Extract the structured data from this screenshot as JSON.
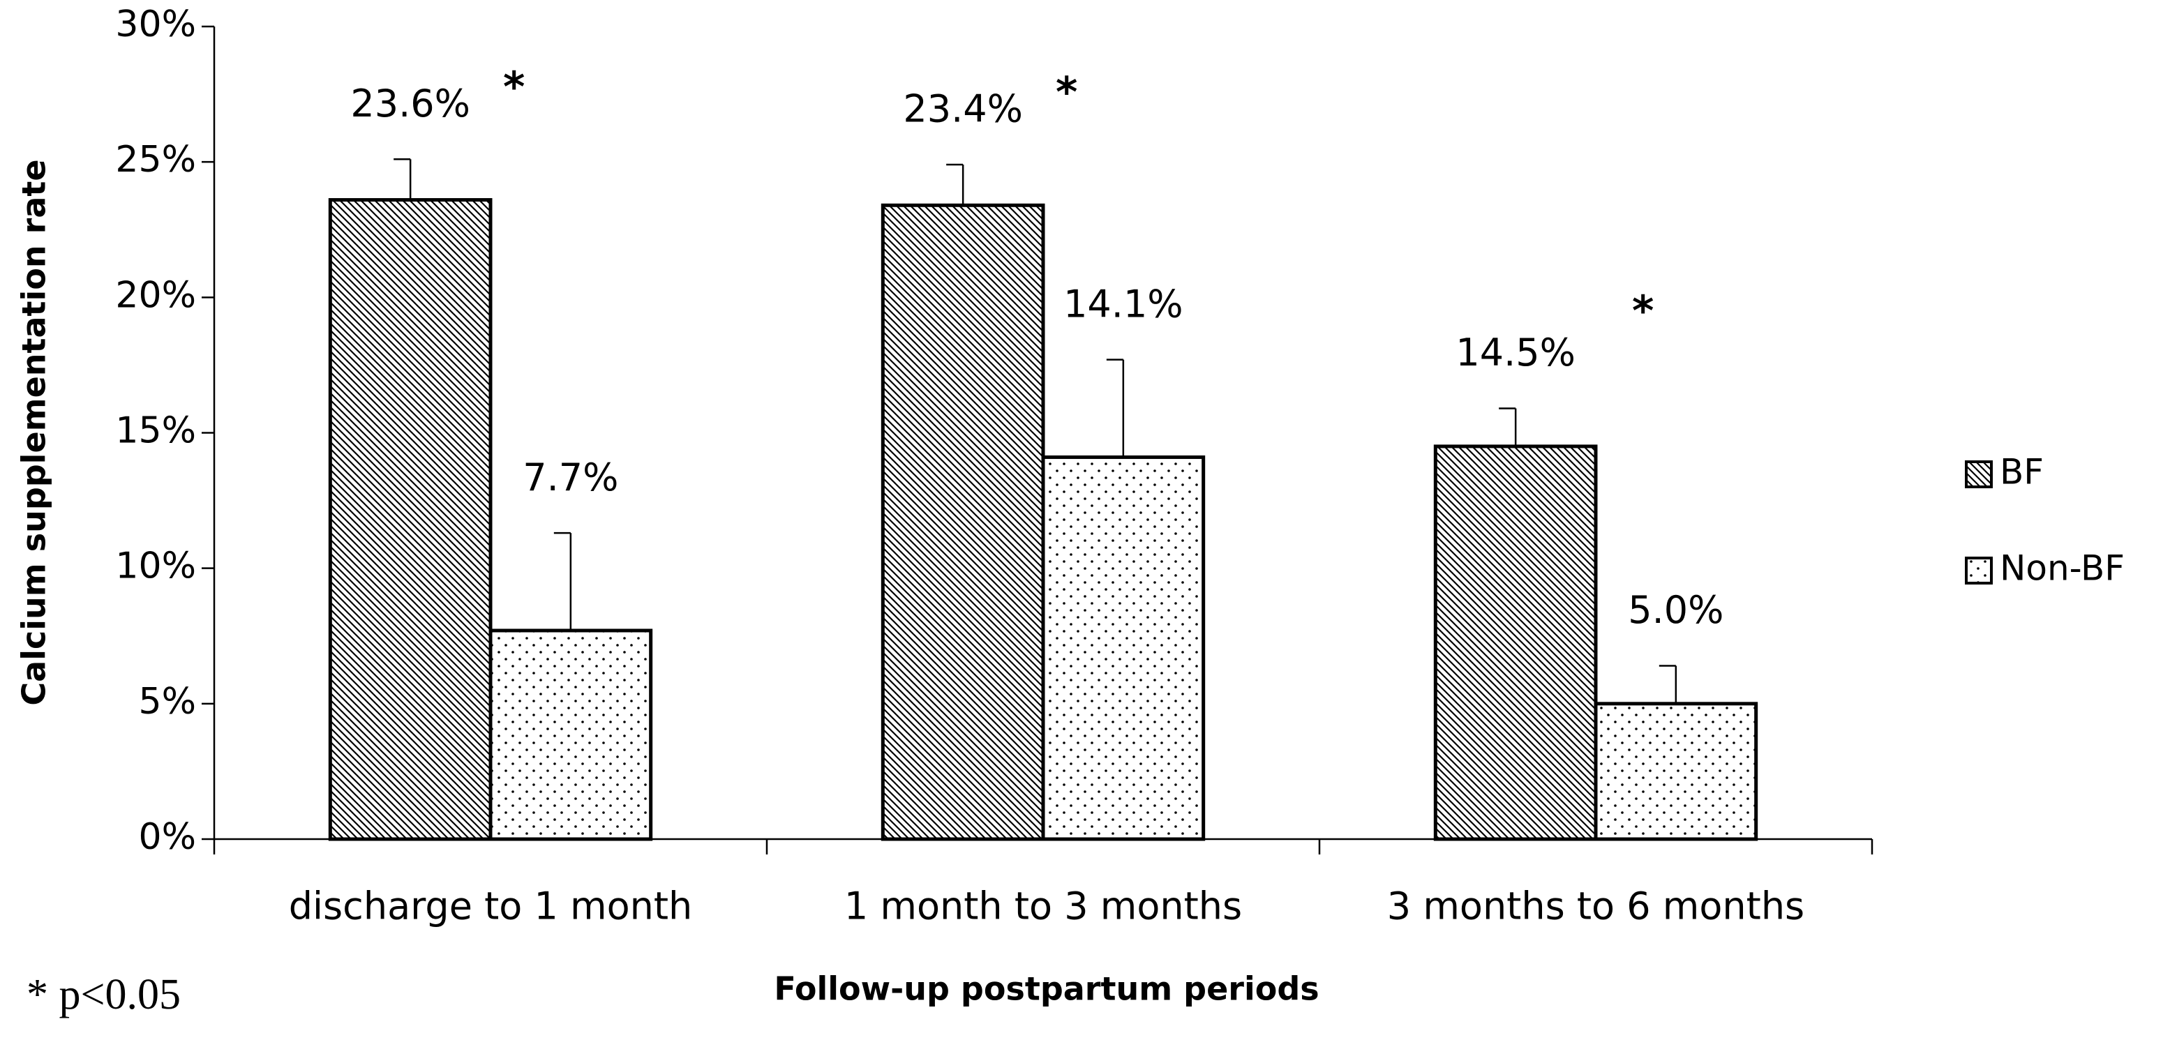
{
  "chart_data": {
    "type": "bar",
    "y_axis_label": "Calcium supplementation rate",
    "x_axis_label": "Follow-up postpartum periods",
    "footnote": "* p<0.05",
    "categories": [
      "discharge to 1 month",
      "1 month to 3 months",
      "3 months to 6 months"
    ],
    "significance_marks": [
      "*",
      "*",
      "*"
    ],
    "series": [
      {
        "name": "BF",
        "color": "#000000",
        "pattern": "hatch",
        "values": [
          23.6,
          23.4,
          14.5
        ],
        "errors": [
          1.5,
          1.5,
          1.4
        ],
        "value_labels": [
          "23.6%",
          "23.4%",
          "14.5%"
        ]
      },
      {
        "name": "Non-BF",
        "color": "#000000",
        "pattern": "dots",
        "values": [
          7.7,
          14.1,
          5.0
        ],
        "errors": [
          3.6,
          3.6,
          1.4
        ],
        "value_labels": [
          "7.7%",
          "14.1%",
          "5.0%"
        ]
      }
    ],
    "ylim": [
      0,
      30
    ],
    "yticks": [
      {
        "value": 0,
        "label": "0%"
      },
      {
        "value": 5,
        "label": "5%"
      },
      {
        "value": 10,
        "label": "10%"
      },
      {
        "value": 15,
        "label": "15%"
      },
      {
        "value": 20,
        "label": "20%"
      },
      {
        "value": 25,
        "label": "25%"
      },
      {
        "value": 30,
        "label": "30%"
      }
    ],
    "legend": "right"
  }
}
